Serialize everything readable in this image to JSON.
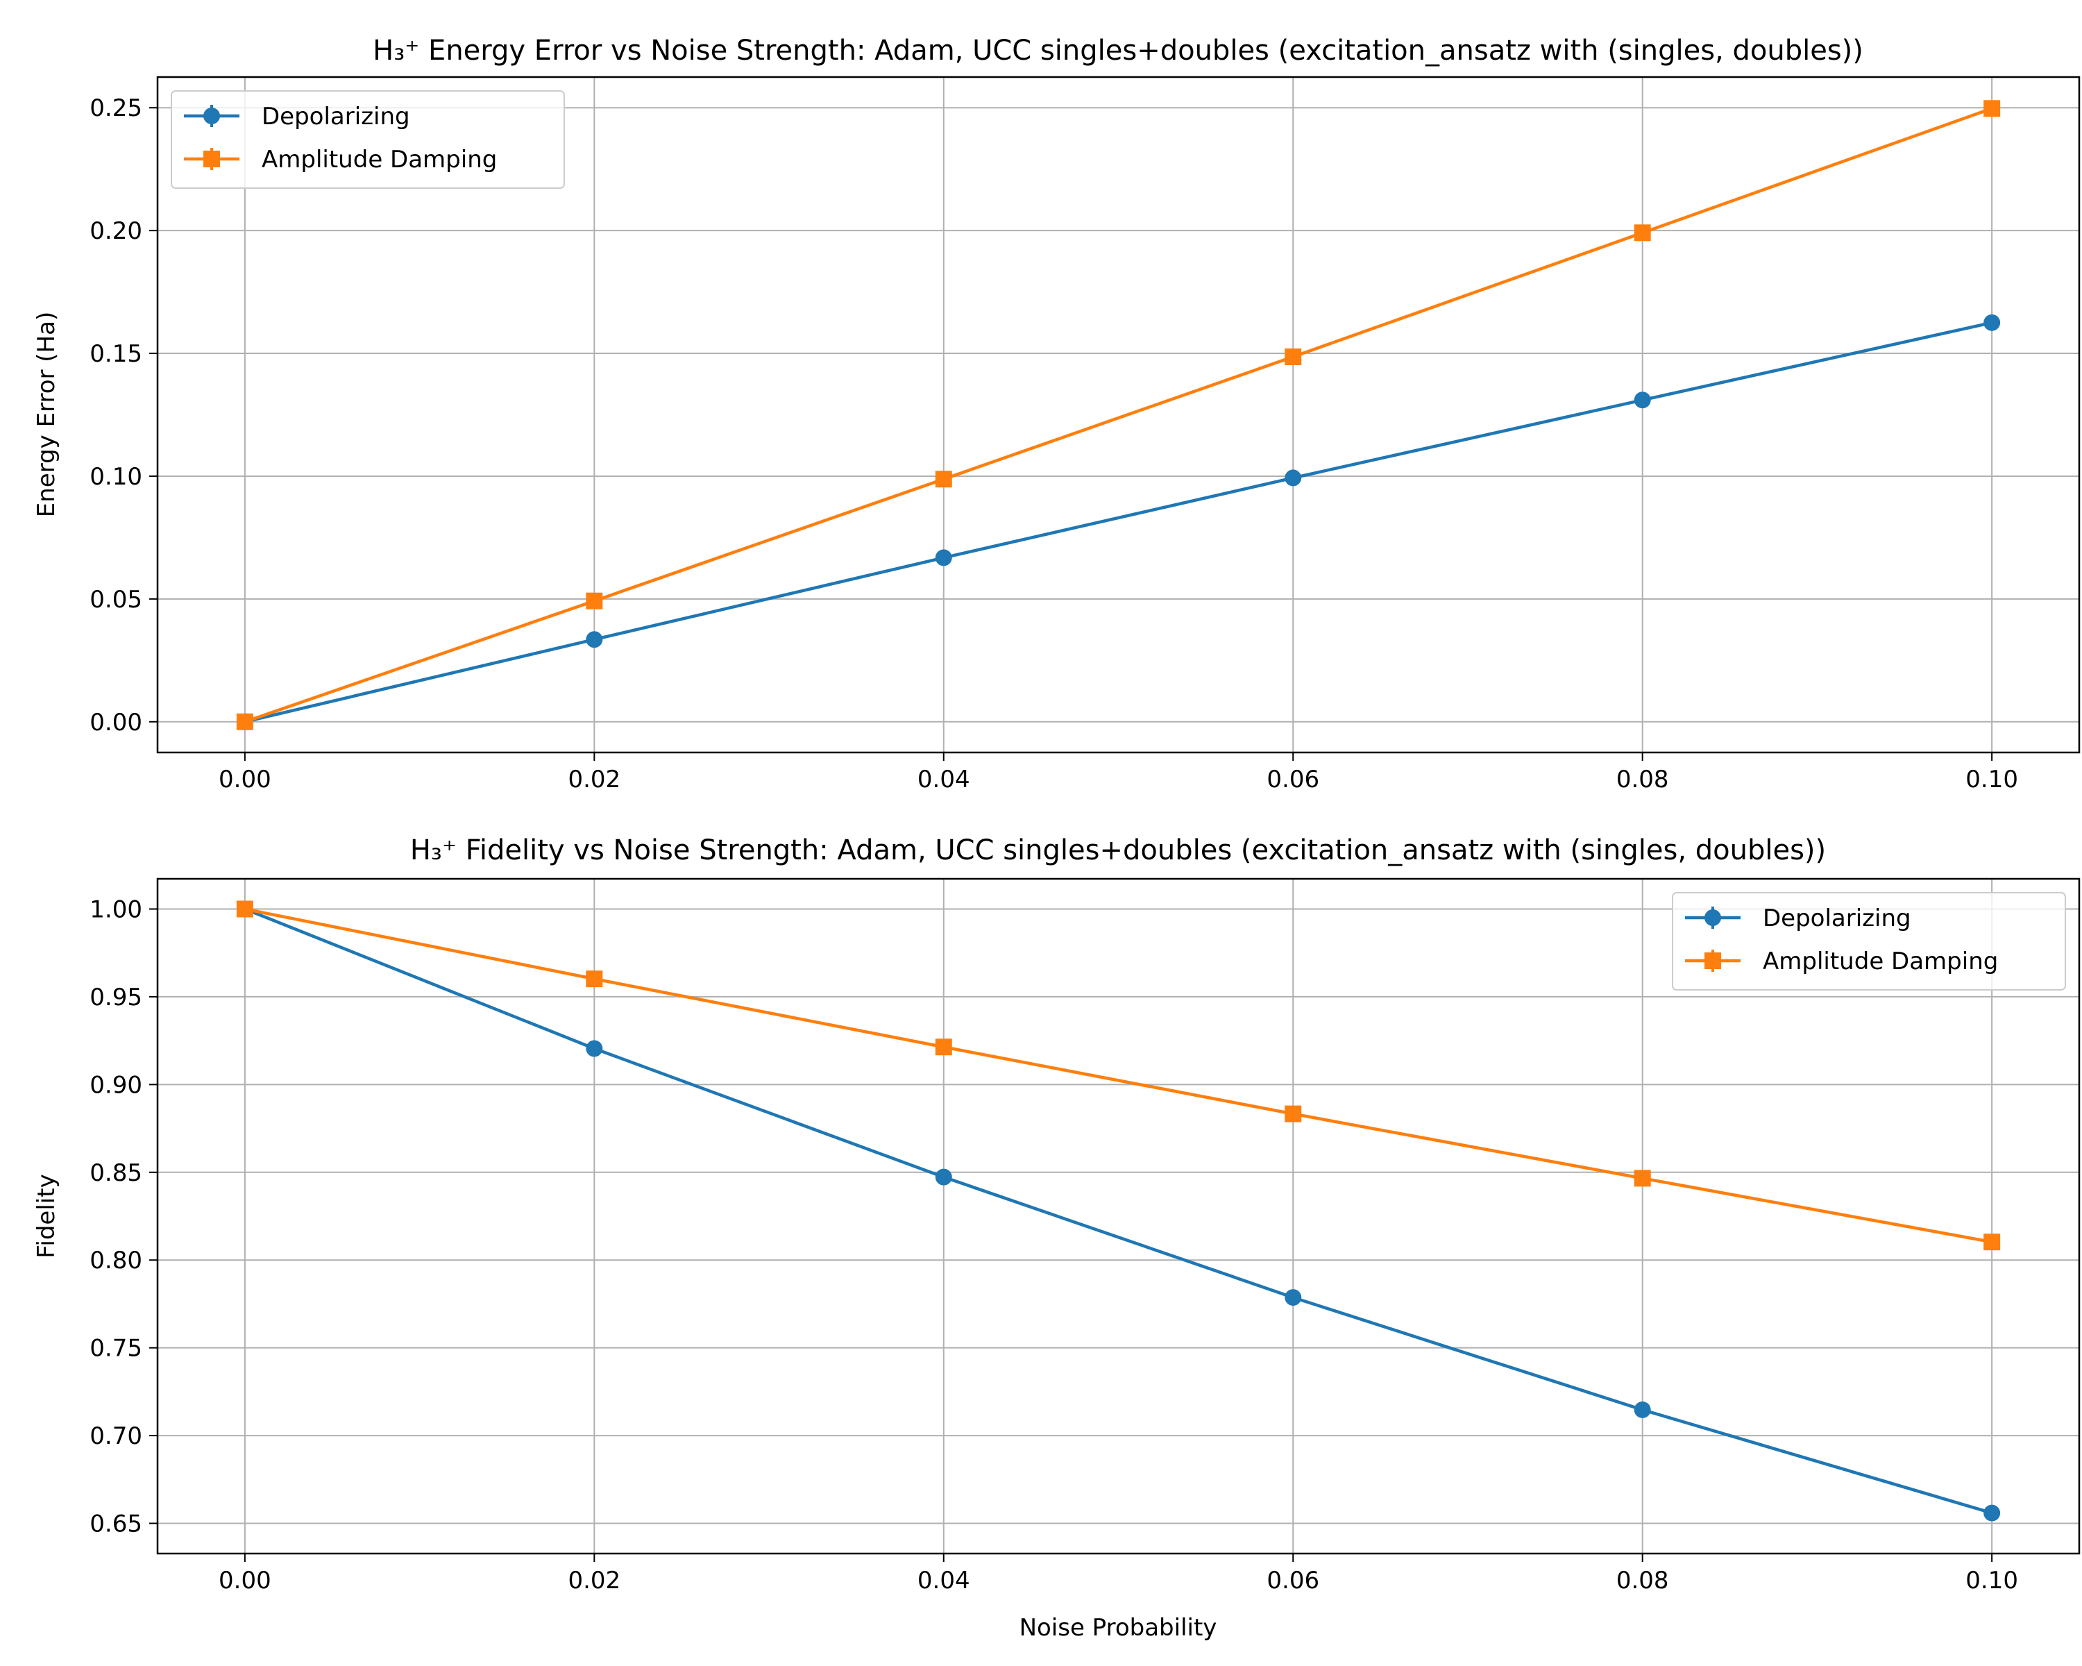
{
  "chart_data": [
    {
      "type": "line",
      "title": "H₃⁺ Energy Error vs Noise Strength: Adam, UCC singles+doubles (excitation_ansatz with (singles, doubles))",
      "xlabel": "",
      "ylabel": "Energy Error (Ha)",
      "xlim": [
        -0.005,
        0.105
      ],
      "ylim": [
        -0.0125,
        0.2625
      ],
      "xticks": [
        "0.00",
        "0.02",
        "0.04",
        "0.06",
        "0.08",
        "0.10"
      ],
      "yticks": [
        "0.00",
        "0.05",
        "0.10",
        "0.15",
        "0.20",
        "0.25"
      ],
      "grid": true,
      "legend": "upper left",
      "x": [
        0.0,
        0.02,
        0.04,
        0.06,
        0.08,
        0.1
      ],
      "series": [
        {
          "name": "Depolarizing",
          "color": "#1f77b4",
          "marker": "circle",
          "values": [
            0.0,
            0.0335,
            0.0668,
            0.0993,
            0.131,
            0.1625
          ]
        },
        {
          "name": "Amplitude Damping",
          "color": "#ff7f0e",
          "marker": "square",
          "values": [
            0.0,
            0.0492,
            0.0988,
            0.1486,
            0.1991,
            0.2497
          ]
        }
      ]
    },
    {
      "type": "line",
      "title": "H₃⁺ Fidelity vs Noise Strength: Adam, UCC singles+doubles (excitation_ansatz with (singles, doubles))",
      "xlabel": "Noise Probability",
      "ylabel": "Fidelity",
      "xlim": [
        -0.005,
        0.105
      ],
      "ylim": [
        0.6328,
        1.0172
      ],
      "xticks": [
        "0.00",
        "0.02",
        "0.04",
        "0.06",
        "0.08",
        "0.10"
      ],
      "yticks": [
        "0.65",
        "0.70",
        "0.75",
        "0.80",
        "0.85",
        "0.90",
        "0.95",
        "1.00"
      ],
      "grid": true,
      "legend": "upper right",
      "x": [
        0.0,
        0.02,
        0.04,
        0.06,
        0.08,
        0.1
      ],
      "series": [
        {
          "name": "Depolarizing",
          "color": "#1f77b4",
          "marker": "circle",
          "values": [
            1.0,
            0.9205,
            0.8473,
            0.7787,
            0.7147,
            0.6559
          ]
        },
        {
          "name": "Amplitude Damping",
          "color": "#ff7f0e",
          "marker": "square",
          "values": [
            1.0,
            0.9602,
            0.9214,
            0.8833,
            0.8466,
            0.8103
          ]
        }
      ]
    }
  ]
}
